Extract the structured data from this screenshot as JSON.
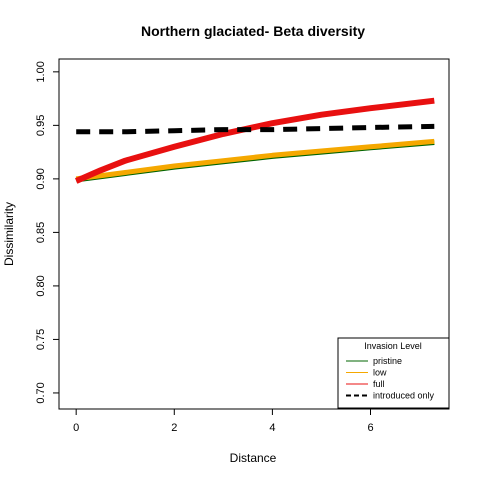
{
  "chart_data": {
    "type": "line",
    "title": "Northern glaciated- Beta diversity",
    "xlabel": "Distance",
    "ylabel": "Dissimilarity",
    "xlim": [
      -0.35,
      7.6
    ],
    "ylim": [
      0.685,
      1.012
    ],
    "xticks": [
      0,
      2,
      4,
      6
    ],
    "yticks": [
      0.7,
      0.75,
      0.8,
      0.85,
      0.9,
      0.95,
      1.0
    ],
    "ytick_labels": [
      "0.70",
      "0.75",
      "0.80",
      "0.85",
      "0.90",
      "0.95",
      "1.00"
    ],
    "grid": false,
    "legend": {
      "title": "Invasion Level",
      "placement": "bottom-right"
    },
    "series": [
      {
        "name": "pristine",
        "color": "#006400",
        "style": "solid",
        "x": [
          0,
          1,
          2,
          3,
          4,
          5,
          6,
          7.3
        ],
        "y": [
          0.899,
          0.905,
          0.911,
          0.916,
          0.921,
          0.925,
          0.929,
          0.934
        ]
      },
      {
        "name": "low",
        "color": "#f5a800",
        "style": "solid",
        "x": [
          0,
          1,
          2,
          3,
          4,
          5,
          6,
          7.3
        ],
        "y": [
          0.9,
          0.906,
          0.912,
          0.917,
          0.922,
          0.926,
          0.93,
          0.935
        ]
      },
      {
        "name": "full",
        "color": "#e81010",
        "style": "solid",
        "x": [
          0,
          0.5,
          1,
          2,
          3,
          4,
          5,
          6,
          7.3
        ],
        "y": [
          0.898,
          0.908,
          0.917,
          0.93,
          0.942,
          0.952,
          0.96,
          0.966,
          0.973
        ]
      },
      {
        "name": "introduced only",
        "color": "#000000",
        "style": "dashed",
        "x": [
          0,
          1,
          2,
          3,
          4,
          5,
          6,
          7.3
        ],
        "y": [
          0.944,
          0.944,
          0.945,
          0.946,
          0.946,
          0.947,
          0.948,
          0.949
        ]
      }
    ]
  }
}
